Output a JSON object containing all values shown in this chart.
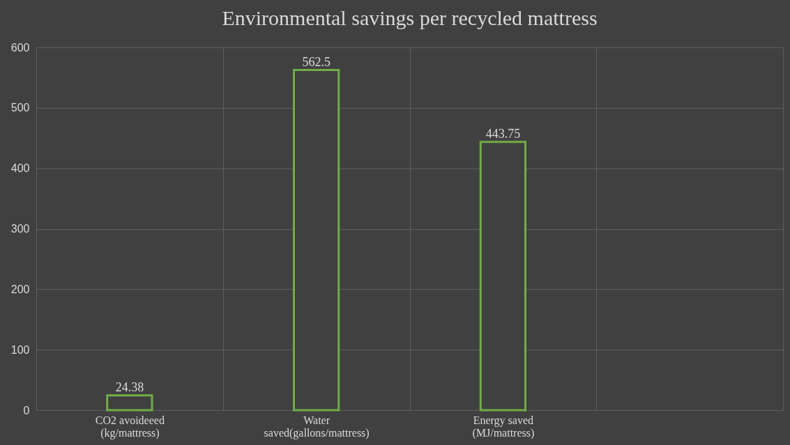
{
  "chart_data": {
    "type": "bar",
    "title": "Environmental savings per recycled mattress",
    "categories": [
      "CO2 avoideeed\n(kg/mattress)",
      "Water\nsaved(gallons/mattress)",
      "Energy saved\n(MJ/mattress)",
      null
    ],
    "values": [
      24.38,
      562.5,
      443.75,
      null
    ],
    "color": "#70ad47",
    "ylim": [
      0,
      600
    ],
    "yticks": [
      0,
      100,
      200,
      300,
      400,
      500,
      600
    ],
    "grid": true,
    "data_labels": true
  }
}
